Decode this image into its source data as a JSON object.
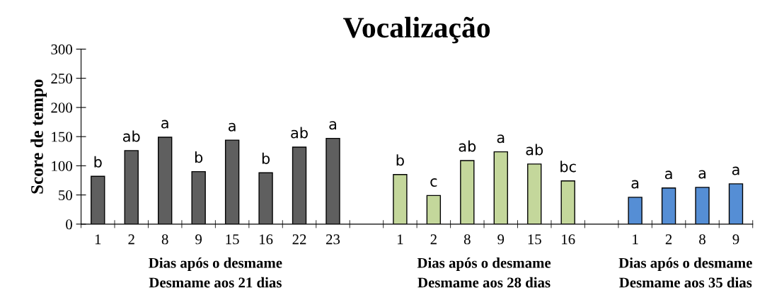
{
  "chart_data": {
    "type": "bar",
    "title": "Vocalização",
    "ylabel": "Score de tempo",
    "categories": [
      "1",
      "2",
      "8",
      "9",
      "15",
      "16",
      "22",
      "23",
      null,
      "1",
      "2",
      "8",
      "9",
      "15",
      "16",
      null,
      "1",
      "2",
      "8",
      "9"
    ],
    "values": [
      82,
      126,
      149,
      90,
      144,
      88,
      132,
      147,
      null,
      85,
      49,
      109,
      124,
      103,
      74,
      null,
      46,
      62,
      63,
      69
    ],
    "colors": [
      "#5f5f5f",
      "#5f5f5f",
      "#5f5f5f",
      "#5f5f5f",
      "#5f5f5f",
      "#5f5f5f",
      "#5f5f5f",
      "#5f5f5f",
      "#ffffff",
      "#c4d79b",
      "#c4d79b",
      "#c4d79b",
      "#c4d79b",
      "#c4d79b",
      "#c4d79b",
      "#ffffff",
      "#558ed5",
      "#558ed5",
      "#558ed5",
      "#558ed5"
    ],
    "value_labels": [
      "b",
      "ab",
      "a",
      "b",
      "a",
      "b",
      "ab",
      "a",
      null,
      "b",
      "c",
      "ab",
      "a",
      "ab",
      "bc",
      null,
      "a",
      "a",
      "a",
      "a"
    ],
    "ylim": [
      0,
      300
    ],
    "yticks": [
      0,
      50,
      100,
      150,
      200,
      250,
      300
    ],
    "grid": false,
    "legend": false,
    "annotations": [
      "Dias após o desmame",
      "Desmame aos 21 dias",
      "Dias após o desmame",
      "Desmame aos 28 dias",
      "Dias após o desmame",
      "Desmame aos 35 dias"
    ]
  }
}
